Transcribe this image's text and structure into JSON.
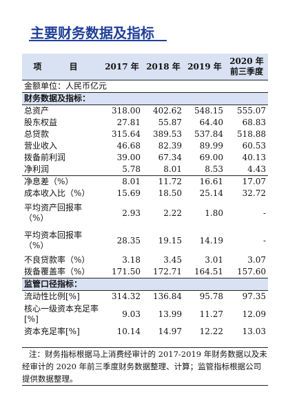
{
  "title": "主要财务数据及指标",
  "header": {
    "item": "项 目",
    "y2017": "2017 年",
    "y2018": "2018 年",
    "y2019": "2019 年",
    "y2020": "2020 年前三季度"
  },
  "unit": "金额单位：人民币亿元",
  "section1": {
    "title": "财务数据及指标：",
    "rows": [
      {
        "label": "总资产",
        "v2017": "318.00",
        "v2018": "402.62",
        "v2019": "548.15",
        "v2020": "555.07"
      },
      {
        "label": "股东权益",
        "v2017": "27.81",
        "v2018": "55.87",
        "v2019": "64.40",
        "v2020": "68.83"
      },
      {
        "label": "总贷款",
        "v2017": "315.64",
        "v2018": "389.53",
        "v2019": "537.84",
        "v2020": "518.88"
      },
      {
        "label": "营业收入",
        "v2017": "46.68",
        "v2018": "82.39",
        "v2019": "89.99",
        "v2020": "60.53"
      },
      {
        "label": "拨备前利润",
        "v2017": "39.00",
        "v2018": "67.34",
        "v2019": "69.00",
        "v2020": "40.13"
      },
      {
        "label": "净利润",
        "v2017": "5.78",
        "v2018": "8.01",
        "v2019": "8.53",
        "v2020": "4.43"
      },
      {
        "label": "净息差（%）",
        "v2017": "8.01",
        "v2018": "11.72",
        "v2019": "16.61",
        "v2020": "17.07"
      },
      {
        "label": "成本收入比（%）",
        "v2017": "15.69",
        "v2018": "18.50",
        "v2019": "25.14",
        "v2020": "32.72"
      },
      {
        "label": "平均资产回报率（%）",
        "v2017": "2.93",
        "v2018": "2.22",
        "v2019": "1.80",
        "v2020": "-"
      },
      {
        "label": "平均资本回报率（%）",
        "v2017": "28.35",
        "v2018": "19.15",
        "v2019": "14.19",
        "v2020": "-"
      },
      {
        "label": "不良贷款率（%）",
        "v2017": "3.18",
        "v2018": "3.45",
        "v2019": "3.01",
        "v2020": "3.07"
      },
      {
        "label": "拨备覆盖率（%）",
        "v2017": "171.50",
        "v2018": "172.71",
        "v2019": "164.51",
        "v2020": "157.60"
      }
    ]
  },
  "section2": {
    "title": "监管口径指标：",
    "rows": [
      {
        "label": "流动性比例[%]",
        "v2017": "314.32",
        "v2018": "136.84",
        "v2019": "95.78",
        "v2020": "97.35"
      },
      {
        "label": "核心一级资本充足率[%]",
        "v2017": "9.03",
        "v2018": "13.99",
        "v2019": "11.27",
        "v2020": "12.09"
      },
      {
        "label": "资本充足率[%]",
        "v2017": "10.14",
        "v2018": "14.97",
        "v2019": "12.22",
        "v2020": "13.03"
      }
    ]
  },
  "note": "注：财务指标根据马上消费经审计的 2017-2019 年财务数据以及未经审计的 2020 年前三季度财务数据整理、计算；监管指标根据公司提供数据整理。"
}
